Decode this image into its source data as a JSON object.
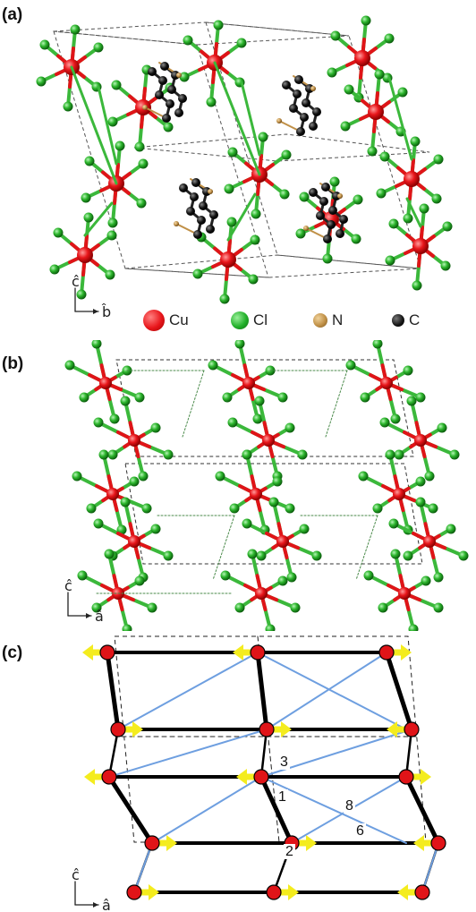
{
  "panels": {
    "a": {
      "label": "(a)",
      "axis_up": "ĉ",
      "axis_right": "b̂"
    },
    "b": {
      "label": "(b)",
      "axis_up": "ĉ",
      "axis_right": "â"
    },
    "c": {
      "label": "(c)",
      "axis_up": "ĉ",
      "axis_right": "â",
      "bond_labels": {
        "b1": "1",
        "b2": "2",
        "b3": "3",
        "b6": "6",
        "b8": "8"
      }
    }
  },
  "legend": [
    {
      "label": "Cu",
      "color": "#e8161b"
    },
    {
      "label": "Cl",
      "color": "#22b02a"
    },
    {
      "label": "N",
      "color": "#c09047"
    },
    {
      "label": "C",
      "color": "#111111"
    }
  ],
  "colors": {
    "cu": "#e01418",
    "cl": "#2cb52c",
    "bond_green": "#3bb83b",
    "spin": "#f4ec1e",
    "exchange_blue": "#6e9fe0",
    "exchange_black": "#000000"
  }
}
